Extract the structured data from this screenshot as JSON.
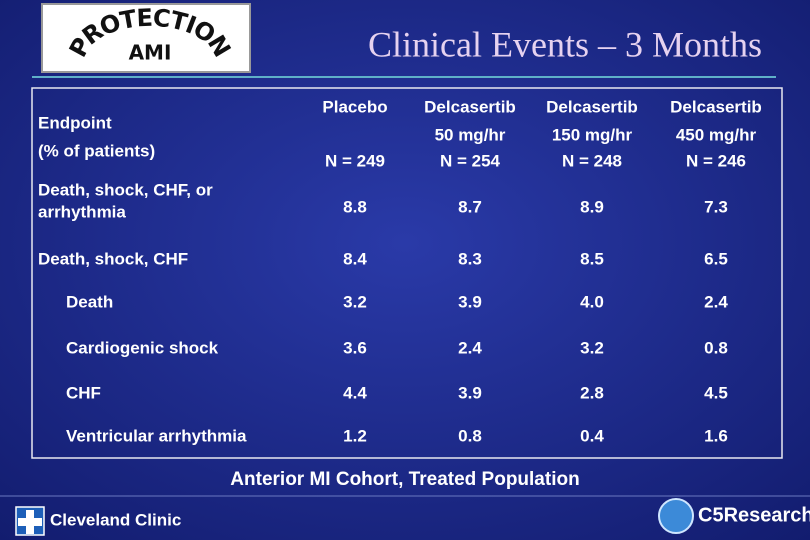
{
  "logo": {
    "top": "PROTECTION",
    "bottom": "AMI"
  },
  "title": "Clinical Events – 3 Months",
  "table": {
    "header": [
      {
        "lines": [
          "Endpoint",
          "(% of patients)"
        ]
      },
      {
        "lines": [
          "Placebo"
        ],
        "n": "N = 249"
      },
      {
        "lines": [
          "Delcasertib",
          "50 mg/hr"
        ],
        "n": "N = 254"
      },
      {
        "lines": [
          "Delcasertib",
          "150 mg/hr"
        ],
        "n": "N = 248"
      },
      {
        "lines": [
          "Delcasertib",
          "450 mg/hr"
        ],
        "n": "N = 246"
      }
    ],
    "rows": [
      {
        "label": [
          "Death, shock, CHF,  or",
          "arrhythmia"
        ],
        "indent": false,
        "cells": [
          "8.8",
          "8.7",
          "8.9",
          "7.3"
        ]
      },
      {
        "label": [
          "Death, shock, CHF"
        ],
        "indent": false,
        "cells": [
          "8.4",
          "8.3",
          "8.5",
          "6.5"
        ]
      },
      {
        "label": [
          "Death"
        ],
        "indent": true,
        "cells": [
          "3.2",
          "3.9",
          "4.0",
          "2.4"
        ]
      },
      {
        "label": [
          "Cardiogenic shock"
        ],
        "indent": true,
        "cells": [
          "3.6",
          "2.4",
          "3.2",
          "0.8"
        ]
      },
      {
        "label": [
          "CHF"
        ],
        "indent": true,
        "cells": [
          "4.4",
          "3.9",
          "2.8",
          "4.5"
        ]
      },
      {
        "label": [
          "Ventricular arrhythmia"
        ],
        "indent": true,
        "cells": [
          "1.2",
          "0.8",
          "0.4",
          "1.6"
        ]
      }
    ]
  },
  "caption": "Anterior MI Cohort, Treated Population",
  "footer": {
    "left": "Cleveland Clinic",
    "right": "C5Research"
  }
}
